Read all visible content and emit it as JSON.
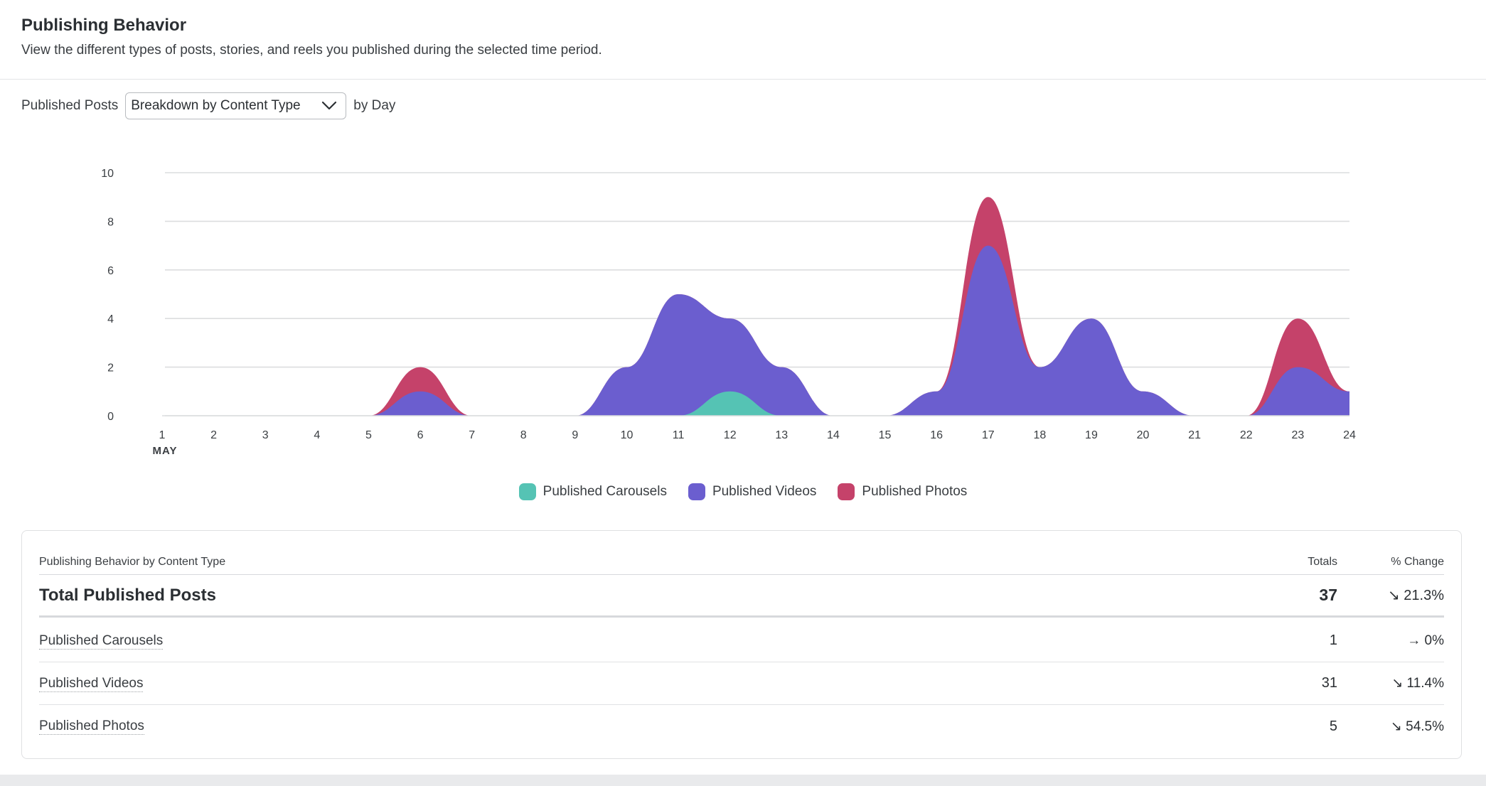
{
  "header": {
    "title": "Publishing Behavior",
    "subtitle": "View the different types of posts, stories, and reels you published during the selected time period."
  },
  "controls": {
    "prefix": "Published Posts",
    "selected": "Breakdown by Content Type",
    "suffix": "by Day"
  },
  "chart_data": {
    "type": "area",
    "stacked": true,
    "x": [
      1,
      2,
      3,
      4,
      5,
      6,
      7,
      8,
      9,
      10,
      11,
      12,
      13,
      14,
      15,
      16,
      17,
      18,
      19,
      20,
      21,
      22,
      23,
      24
    ],
    "x_tick_labels": [
      "1",
      "2",
      "3",
      "4",
      "5",
      "6",
      "7",
      "8",
      "9",
      "10",
      "11",
      "12",
      "13",
      "14",
      "15",
      "16",
      "17",
      "18",
      "19",
      "20",
      "21",
      "22",
      "23",
      "24"
    ],
    "x_sublabel": "MAY",
    "y_ticks": [
      "0",
      "2",
      "4",
      "6",
      "8",
      "10"
    ],
    "ylim": [
      0,
      10
    ],
    "grid": true,
    "legend_position": "bottom",
    "series": [
      {
        "name": "Published Carousels",
        "color": "#55c3b4",
        "values": [
          0,
          0,
          0,
          0,
          0,
          0,
          0,
          0,
          0,
          0,
          0,
          1,
          0,
          0,
          0,
          0,
          0,
          0,
          0,
          0,
          0,
          0,
          0,
          0
        ]
      },
      {
        "name": "Published Videos",
        "color": "#6b5ecf",
        "values": [
          0,
          0,
          0,
          0,
          0,
          1,
          0,
          0,
          0,
          2,
          5,
          3,
          2,
          0,
          0,
          1,
          7,
          2,
          4,
          1,
          0,
          0,
          2,
          1
        ]
      },
      {
        "name": "Published Photos",
        "color": "#c5426a",
        "values": [
          0,
          0,
          0,
          0,
          0,
          1,
          0,
          0,
          0,
          0,
          0,
          0,
          0,
          0,
          0,
          0,
          2,
          0,
          0,
          0,
          0,
          0,
          2,
          0
        ]
      }
    ]
  },
  "table": {
    "header": {
      "label": "Publishing Behavior by Content Type",
      "totals": "Totals",
      "change": "% Change"
    },
    "total_row": {
      "label": "Total Published Posts",
      "total": "37",
      "arrow": "↘",
      "change": "21.3%"
    },
    "rows": [
      {
        "label": "Published Carousels",
        "total": "1",
        "arrow": "→",
        "change": "0%"
      },
      {
        "label": "Published Videos",
        "total": "31",
        "arrow": "↘",
        "change": "11.4%"
      },
      {
        "label": "Published Photos",
        "total": "5",
        "arrow": "↘",
        "change": "54.5%"
      }
    ]
  }
}
